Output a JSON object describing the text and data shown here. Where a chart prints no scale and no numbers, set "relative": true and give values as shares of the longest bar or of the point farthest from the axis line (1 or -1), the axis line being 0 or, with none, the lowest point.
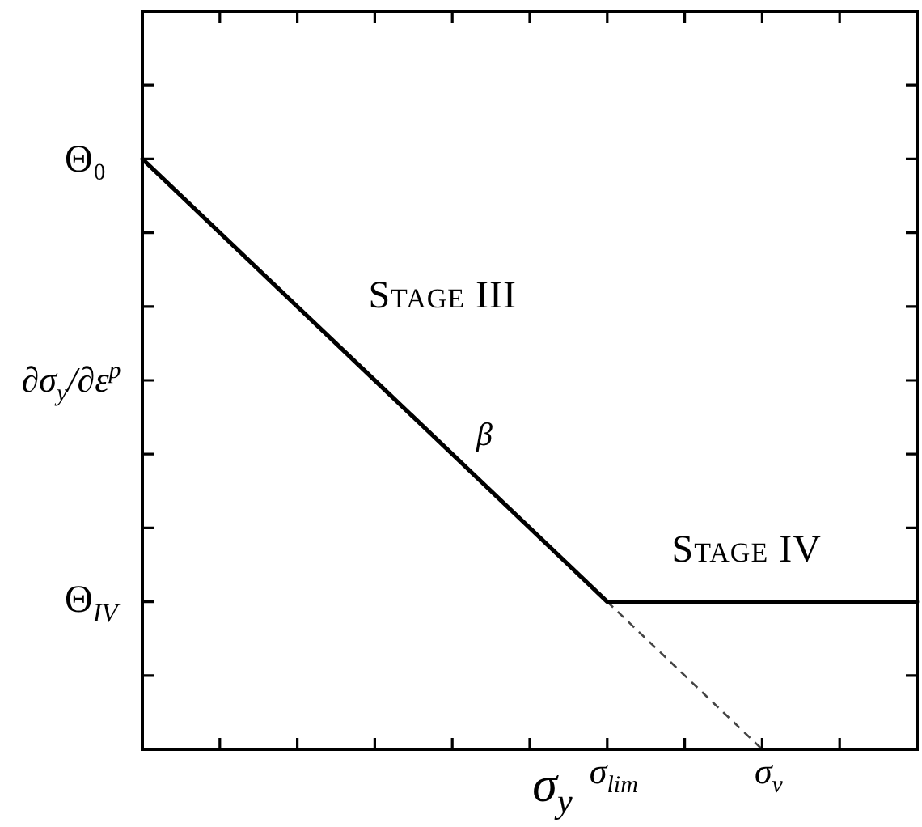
{
  "chart_data": {
    "type": "line",
    "relative": true,
    "xlabel": "σ$_{y}$",
    "ylabel": "∂σ$_{y}$/∂ε$^{p}$",
    "categories": [
      null,
      null,
      null,
      null,
      null,
      null,
      "σ$_{lim}$",
      null,
      "σ$_{v}$",
      null,
      null
    ],
    "series": [
      {
        "color": "#000000",
        "values": [
          1,
          0.875,
          0.75,
          0.625,
          0.5,
          0.375,
          0.25,
          0.25,
          0.25,
          0.25,
          0.25
        ]
      },
      {
        "color": "#444444",
        "values": [
          null,
          null,
          null,
          null,
          null,
          null,
          0.25,
          0.125,
          0,
          null,
          null
        ],
        "line_style": "dashed"
      }
    ],
    "annotations": [
      "Stage III",
      "β",
      "Stage IV",
      "Θ₀",
      "Θ$_{IV}$"
    ]
  }
}
